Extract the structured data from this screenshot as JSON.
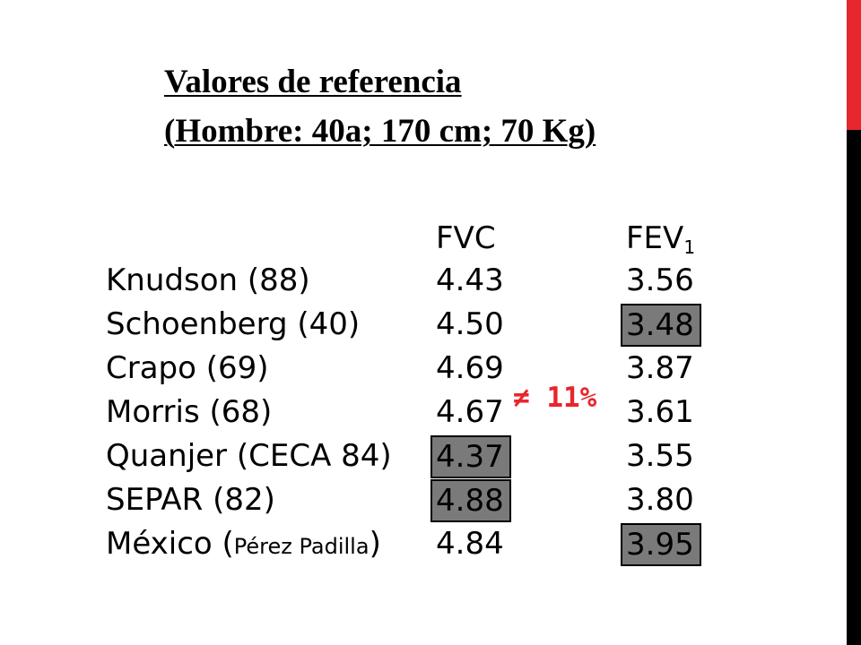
{
  "slide": {
    "title_line1": "Valores de referencia",
    "title_line2": "(Hombre: 40a; 170 cm; 70 Kg)",
    "columns": {
      "fvc": "FVC",
      "fev_main": "FEV",
      "fev_sub": "1"
    },
    "rows": [
      {
        "name": "Knudson (88)",
        "fvc": "4.43",
        "fev": "3.56",
        "fvc_highlight": false,
        "fev_highlight": false
      },
      {
        "name": "Schoenberg (40)",
        "fvc": "4.50",
        "fev": "3.48",
        "fvc_highlight": false,
        "fev_highlight": true
      },
      {
        "name": "Crapo (69)",
        "fvc": "4.69",
        "fev": "3.87",
        "fvc_highlight": false,
        "fev_highlight": false
      },
      {
        "name": "Morris (68)",
        "fvc": "4.67",
        "fev": "3.61",
        "fvc_highlight": false,
        "fev_highlight": false
      },
      {
        "name": "Quanjer (CECA 84)",
        "fvc": "4.37",
        "fev": "3.55",
        "fvc_highlight": true,
        "fev_highlight": false
      },
      {
        "name": "SEPAR (82)",
        "fvc": "4.88",
        "fev": "3.80",
        "fvc_highlight": true,
        "fev_highlight": false
      },
      {
        "name_prefix": "México (",
        "name_author": "Pérez Padilla",
        "name_suffix": ")",
        "fvc": "4.84",
        "fev": "3.95",
        "fvc_highlight": false,
        "fev_highlight": true
      }
    ],
    "difference_label": "≠ 11%",
    "colors": {
      "accent_bar": "#e8262d",
      "dark_bar": "#000000",
      "highlight_fill": "#7a7a7a",
      "difference_text": "#e8262d"
    }
  }
}
